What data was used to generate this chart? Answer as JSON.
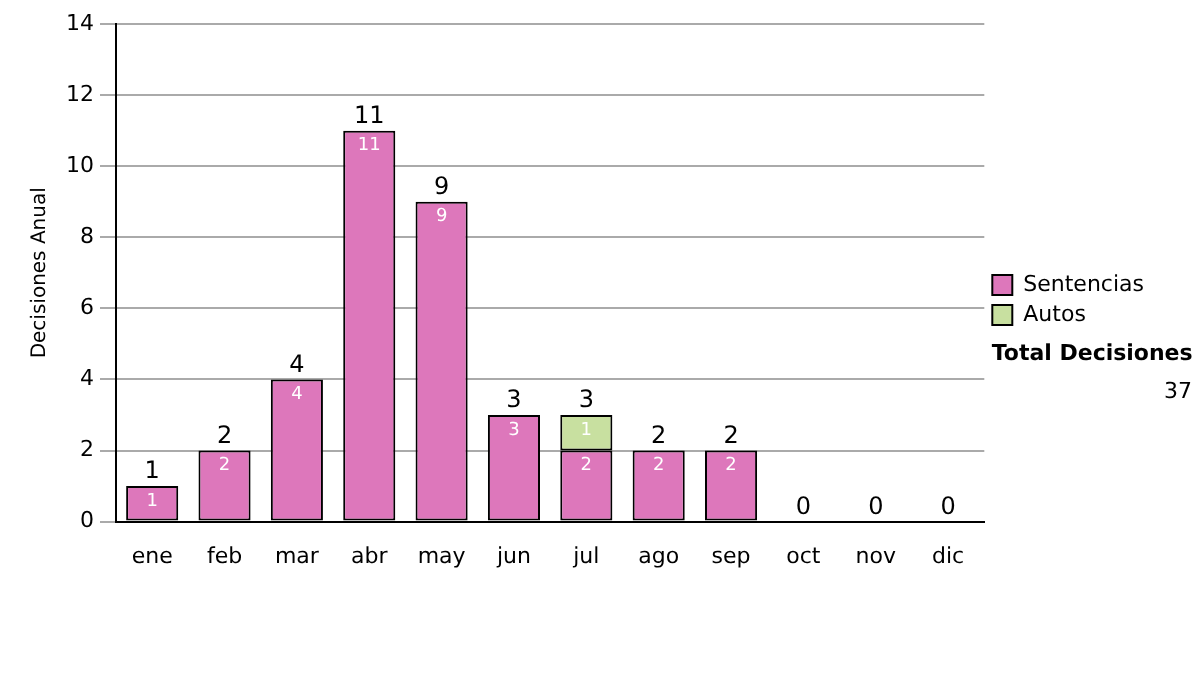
{
  "chart_data": {
    "type": "bar",
    "ylabel": "Decisiones Anual",
    "categories": [
      "ene",
      "feb",
      "mar",
      "abr",
      "may",
      "jun",
      "jul",
      "ago",
      "sep",
      "oct",
      "nov",
      "dic"
    ],
    "series": [
      {
        "name": "Sentencias",
        "color": "#dd77bb",
        "values": [
          1,
          2,
          4,
          11,
          9,
          3,
          2,
          2,
          2,
          0,
          0,
          0
        ],
        "value_labels": [
          "1",
          "2",
          "4",
          "11",
          "9",
          "3",
          "2",
          "2",
          "2",
          null,
          null,
          null
        ]
      },
      {
        "name": "Autos",
        "color": "#c8e0a0",
        "values": [
          0,
          0,
          0,
          0,
          0,
          0,
          1,
          0,
          0,
          0,
          0,
          0
        ],
        "value_labels": [
          null,
          null,
          null,
          null,
          null,
          null,
          "1",
          null,
          null,
          null,
          null,
          null
        ]
      }
    ],
    "stacked": true,
    "totals": [
      "1",
      "2",
      "4",
      "11",
      "9",
      "3",
      "3",
      "2",
      "2",
      "0",
      "0",
      "0"
    ],
    "ylim": [
      0,
      14
    ],
    "yticks": [
      0,
      2,
      4,
      6,
      8,
      10,
      12,
      14
    ],
    "grid": "y",
    "legend": "right",
    "annotations": [
      "Total Decisiones",
      "37"
    ]
  }
}
